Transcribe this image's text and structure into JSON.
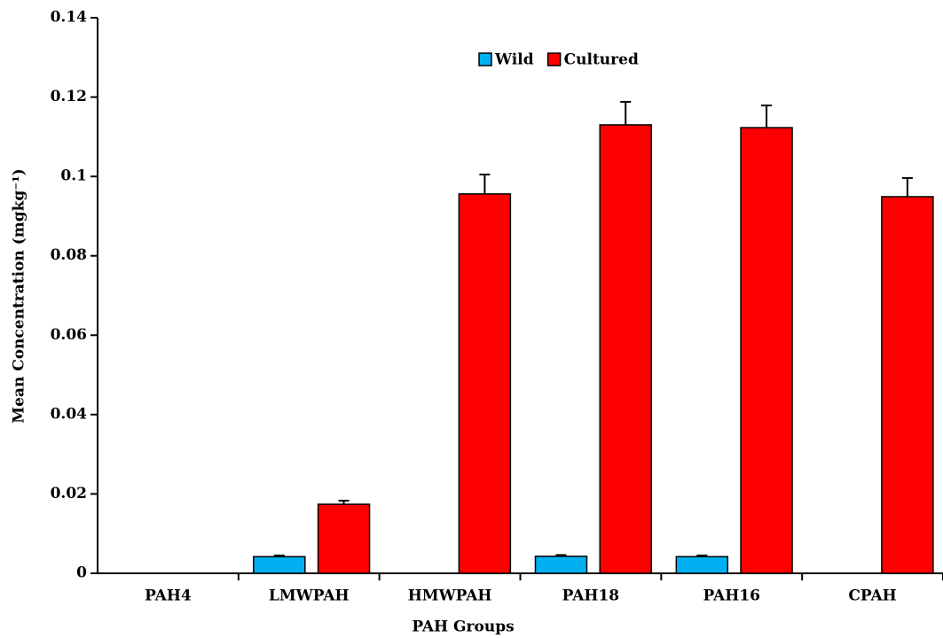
{
  "chart_data": {
    "type": "bar",
    "x_label": "PAH Groups",
    "y_label": "Mean Concentration (mgkg⁻¹)",
    "categories": [
      "PAH4",
      "LMWPAH",
      "HMWPAH",
      "PAH18",
      "PAH16",
      "CPAH"
    ],
    "series": [
      {
        "name": "Wild",
        "color": "#00b0f0",
        "values": [
          0,
          0.0042,
          0,
          0.0043,
          0.0042,
          0
        ],
        "errors": [
          0,
          0.0003,
          0,
          0.0003,
          0.0003,
          0
        ]
      },
      {
        "name": "Cultured",
        "color": "#ff0000",
        "values": [
          0,
          0.0174,
          0.0956,
          0.113,
          0.1123,
          0.0949
        ],
        "errors": [
          0,
          0.0009,
          0.0049,
          0.0058,
          0.0056,
          0.0047
        ]
      }
    ],
    "ylim": [
      0,
      0.14
    ],
    "yticks": [
      0,
      0.02,
      0.04,
      0.06,
      0.08,
      0.1,
      0.12,
      0.14
    ],
    "legend": "top"
  }
}
